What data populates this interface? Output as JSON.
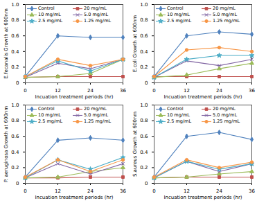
{
  "chart_data": [
    {
      "type": "line",
      "x": [
        0,
        12,
        24,
        36
      ],
      "xlabel": "Incuation treatment periods (hr)",
      "ylabel": "E.fecanalis Growth at 600nm",
      "xlim": [
        0,
        36
      ],
      "xticks": [
        0,
        12,
        24,
        36
      ],
      "ylim": [
        0,
        1
      ],
      "yticks": [
        0,
        0.2,
        0.4,
        0.6,
        0.8,
        {
          "value": 1,
          "label": "1.0"
        }
      ],
      "legend": "top",
      "series": [
        {
          "name": "Control",
          "color": "#4f81bd",
          "marker": "diamond",
          "values": [
            0.08,
            0.6,
            0.58,
            0.58
          ]
        },
        {
          "name": "20 mg/mL",
          "color": "#c0504d",
          "marker": "square",
          "values": [
            0.07,
            0.08,
            0.08,
            0.08
          ]
        },
        {
          "name": "10 mg/mL",
          "color": "#9bbb59",
          "marker": "triangle",
          "values": [
            0.07,
            0.08,
            0.12,
            0.3
          ]
        },
        {
          "name": "5.0 mg/mL",
          "color": "#8064a2",
          "marker": "times",
          "values": [
            0.07,
            0.25,
            0.18,
            0.3
          ]
        },
        {
          "name": "2.5 mg/mL",
          "color": "#4bacc6",
          "marker": "star",
          "values": [
            0.08,
            0.28,
            0.15,
            0.3
          ]
        },
        {
          "name": "1.25 mg/mL",
          "color": "#f79646",
          "marker": "circle",
          "values": [
            0.08,
            0.3,
            0.22,
            0.3
          ]
        }
      ]
    },
    {
      "type": "line",
      "x": [
        0,
        12,
        24,
        36
      ],
      "xlabel": "Incuation treatment periods (hr)",
      "ylabel": "E.coli Growth at 600nm",
      "xlim": [
        0,
        36
      ],
      "xticks": [
        0,
        12,
        24,
        36
      ],
      "ylim": [
        0,
        1
      ],
      "yticks": [
        0,
        0.2,
        0.4,
        0.6,
        0.8,
        {
          "value": 1,
          "label": "1.0"
        }
      ],
      "legend": "top",
      "series": [
        {
          "name": "Control",
          "color": "#4f81bd",
          "marker": "diamond",
          "values": [
            0.08,
            0.6,
            0.65,
            0.62
          ]
        },
        {
          "name": "20 mg/mL",
          "color": "#c0504d",
          "marker": "square",
          "values": [
            0.08,
            0.08,
            0.08,
            0.08
          ]
        },
        {
          "name": "10 mg/mL",
          "color": "#9bbb59",
          "marker": "triangle",
          "values": [
            0.07,
            0.1,
            0.18,
            0.25
          ]
        },
        {
          "name": "5.0 mg/mL",
          "color": "#8064a2",
          "marker": "times",
          "values": [
            0.07,
            0.28,
            0.22,
            0.3
          ]
        },
        {
          "name": "2.5 mg/mL",
          "color": "#4bacc6",
          "marker": "star",
          "values": [
            0.07,
            0.3,
            0.35,
            0.35
          ]
        },
        {
          "name": "1.25 mg/mL",
          "color": "#f79646",
          "marker": "circle",
          "values": [
            0.08,
            0.42,
            0.45,
            0.4
          ]
        }
      ]
    },
    {
      "type": "line",
      "x": [
        0,
        12,
        24,
        36
      ],
      "xlabel": "Incuation treatment periods (hr)",
      "ylabel": "P. aeruginosa Growth at 600nm",
      "xlim": [
        0,
        36
      ],
      "xticks": [
        0,
        12,
        24,
        36
      ],
      "ylim": [
        0,
        1
      ],
      "yticks": [
        0,
        0.2,
        0.4,
        0.6,
        0.8,
        {
          "value": 1,
          "label": "1.0"
        }
      ],
      "legend": "top",
      "series": [
        {
          "name": "Control",
          "color": "#4f81bd",
          "marker": "diamond",
          "values": [
            0.08,
            0.55,
            0.58,
            0.55
          ]
        },
        {
          "name": "20 mg/mL",
          "color": "#c0504d",
          "marker": "square",
          "values": [
            0.07,
            0.07,
            0.08,
            0.08
          ]
        },
        {
          "name": "10 mg/mL",
          "color": "#9bbb59",
          "marker": "triangle",
          "values": [
            0.07,
            0.08,
            0.15,
            0.2
          ]
        },
        {
          "name": "5.0 mg/mL",
          "color": "#8064a2",
          "marker": "times",
          "values": [
            0.07,
            0.25,
            0.12,
            0.25
          ]
        },
        {
          "name": "2.5 mg/mL",
          "color": "#4bacc6",
          "marker": "star",
          "values": [
            0.07,
            0.3,
            0.18,
            0.33
          ]
        },
        {
          "name": "1.25 mg/mL",
          "color": "#f79646",
          "marker": "circle",
          "values": [
            0.08,
            0.3,
            0.15,
            0.3
          ]
        }
      ]
    },
    {
      "type": "line",
      "x": [
        0,
        12,
        24,
        36
      ],
      "xlabel": "Incuation treatment periods (hr)",
      "ylabel": "S.aureus Growth at 600nm",
      "xlim": [
        0,
        36
      ],
      "xticks": [
        0,
        12,
        24,
        36
      ],
      "ylim": [
        0,
        1
      ],
      "yticks": [
        0,
        0.2,
        0.4,
        0.6,
        0.8,
        {
          "value": 1,
          "label": "1.0"
        }
      ],
      "legend": "top",
      "series": [
        {
          "name": "Control",
          "color": "#4f81bd",
          "marker": "diamond",
          "values": [
            0.08,
            0.6,
            0.65,
            0.56
          ]
        },
        {
          "name": "20 mg/mL",
          "color": "#c0504d",
          "marker": "square",
          "values": [
            0.07,
            0.08,
            0.08,
            0.08
          ]
        },
        {
          "name": "10 mg/mL",
          "color": "#9bbb59",
          "marker": "triangle",
          "values": [
            0.07,
            0.08,
            0.12,
            0.15
          ]
        },
        {
          "name": "5.0 mg/mL",
          "color": "#8064a2",
          "marker": "times",
          "values": [
            0.07,
            0.28,
            0.15,
            0.25
          ]
        },
        {
          "name": "2.5 mg/mL",
          "color": "#4bacc6",
          "marker": "star",
          "values": [
            0.07,
            0.28,
            0.18,
            0.25
          ]
        },
        {
          "name": "1.25 mg/mL",
          "color": "#f79646",
          "marker": "circle",
          "values": [
            0.08,
            0.3,
            0.2,
            0.27
          ]
        }
      ]
    }
  ]
}
